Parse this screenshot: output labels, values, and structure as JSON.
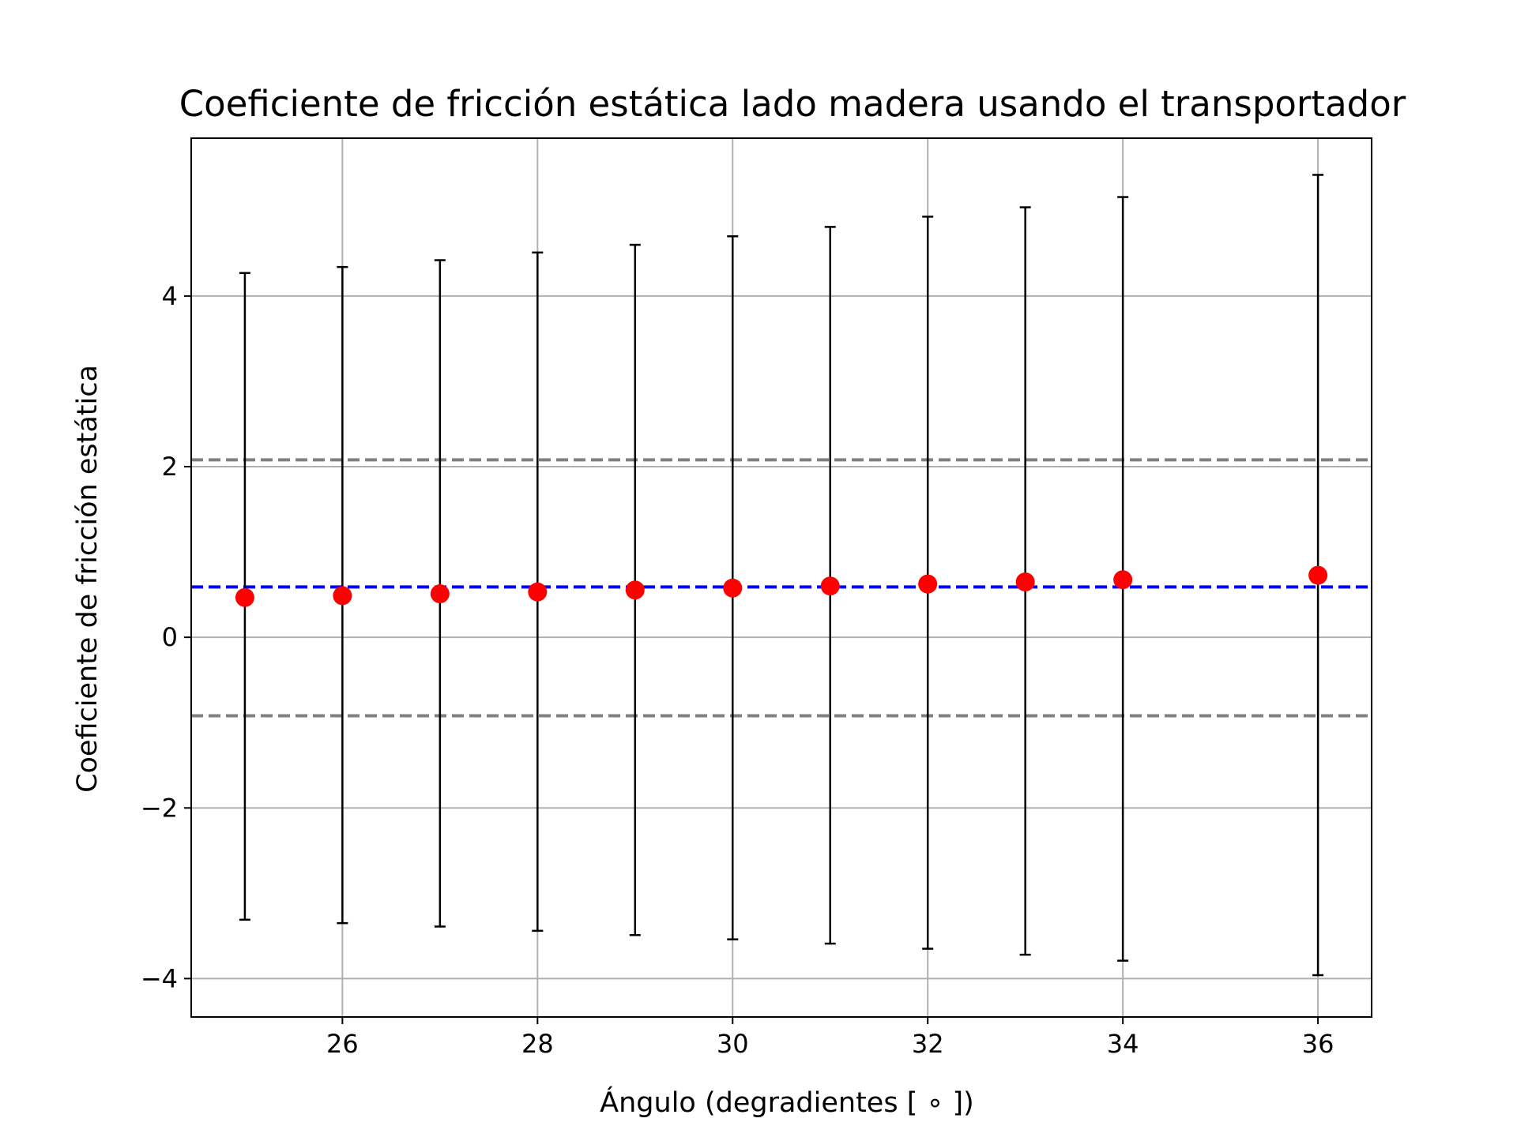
{
  "chart_data": {
    "type": "scatter",
    "title": "Coeficiente de fricción estática lado madera usando el transportador",
    "xlabel": "Ángulo (degradientes [ ∘ ])",
    "ylabel": "Coeficiente de fricción estática",
    "xlim": [
      24.45,
      36.55
    ],
    "ylim": [
      -4.45,
      5.85
    ],
    "xticks": [
      26,
      28,
      30,
      32,
      34,
      36
    ],
    "xtick_labels": [
      "26",
      "28",
      "30",
      "32",
      "34",
      "36"
    ],
    "yticks": [
      -4,
      -2,
      0,
      2,
      4
    ],
    "ytick_labels": [
      "−4",
      "−2",
      "0",
      "2",
      "4"
    ],
    "grid": true,
    "x": [
      25,
      26,
      27,
      28,
      29,
      30,
      31,
      32,
      33,
      34,
      36
    ],
    "y": [
      0.466,
      0.488,
      0.51,
      0.532,
      0.554,
      0.577,
      0.601,
      0.625,
      0.649,
      0.675,
      0.727
    ],
    "yerr_lower": [
      -3.31,
      -3.35,
      -3.39,
      -3.44,
      -3.49,
      -3.54,
      -3.59,
      -3.65,
      -3.72,
      -3.79,
      -3.96
    ],
    "yerr_upper": [
      4.27,
      4.34,
      4.42,
      4.51,
      4.6,
      4.7,
      4.81,
      4.93,
      5.04,
      5.16,
      5.42
    ],
    "hlines": [
      {
        "y": 0.59,
        "color": "#0000ff",
        "style": "dashed"
      },
      {
        "y": 2.08,
        "color": "#808080",
        "style": "dashed"
      },
      {
        "y": -0.92,
        "color": "#808080",
        "style": "dashed"
      }
    ],
    "marker_color": "#ff0000",
    "errorbar_color": "#000000"
  }
}
